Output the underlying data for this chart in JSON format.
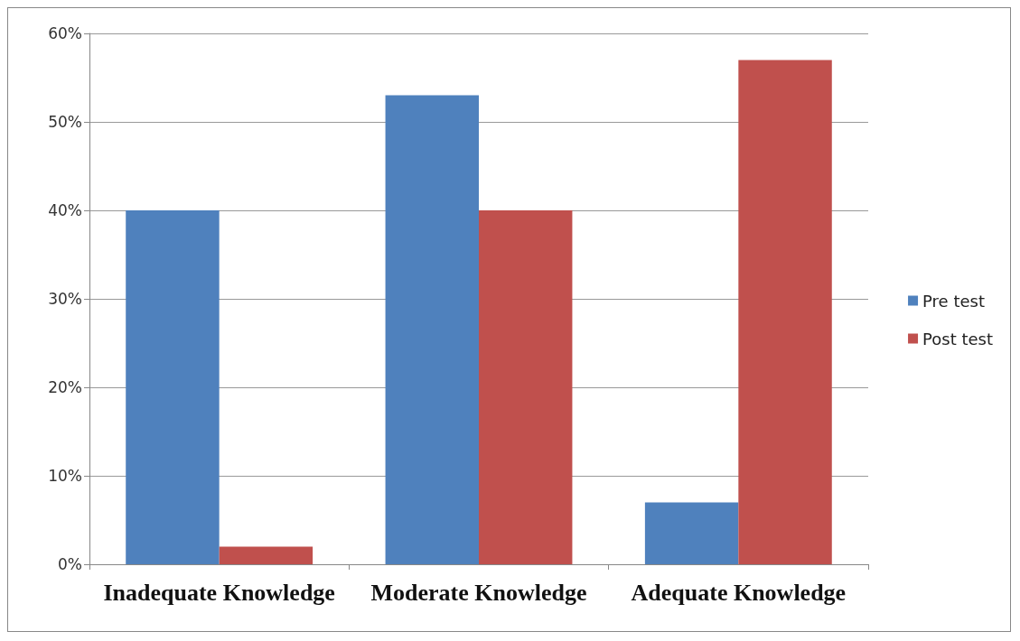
{
  "chart_data": {
    "type": "bar",
    "categories": [
      "Inadequate Knowledge",
      "Moderate Knowledge",
      "Adequate Knowledge"
    ],
    "series": [
      {
        "name": "Pre test",
        "color": "#4f81bd",
        "values": [
          40,
          53,
          7
        ]
      },
      {
        "name": "Post test",
        "color": "#c0504d",
        "values": [
          2,
          40,
          57
        ]
      }
    ],
    "ylim": [
      0,
      60
    ],
    "yticks": [
      {
        "value": 0,
        "label": "0%"
      },
      {
        "value": 10,
        "label": "10%"
      },
      {
        "value": 20,
        "label": "20%"
      },
      {
        "value": 30,
        "label": "30%"
      },
      {
        "value": 40,
        "label": "40%"
      },
      {
        "value": 50,
        "label": "50%"
      },
      {
        "value": 60,
        "label": "60%"
      }
    ],
    "grid": "y",
    "legend": "right"
  }
}
